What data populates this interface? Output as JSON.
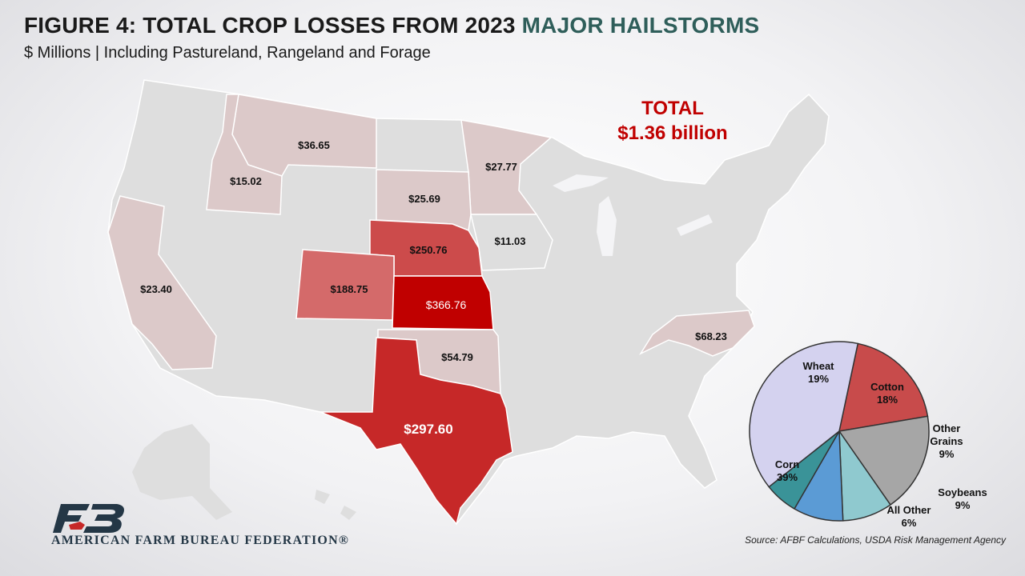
{
  "header": {
    "title_main": "FIGURE 4: TOTAL CROP LOSSES FROM 2023 ",
    "title_accent": "MAJOR HAILSTORMS",
    "subtitle": "$ Millions | Including Pastureland, Rangeland and Forage"
  },
  "total": {
    "line1": "TOTAL",
    "line2": "$1.36 billion"
  },
  "colors": {
    "state_default": "#dcdcdc",
    "state_low": "#dcc9c9",
    "state_mid": "#d46a6a",
    "state_high": "#cc4b4b",
    "state_texas": "#c62828",
    "state_max": "#c00000",
    "title_accent": "#2f5e5a",
    "total_text": "#c00000"
  },
  "chart_data": [
    {
      "type": "choropleth",
      "states": [
        {
          "state": "Montana",
          "value": 36.65,
          "label": "$36.65"
        },
        {
          "state": "Idaho",
          "value": 15.02,
          "label": "$15.02"
        },
        {
          "state": "Minnesota",
          "value": 27.77,
          "label": "$27.77"
        },
        {
          "state": "South Dakota",
          "value": 25.69,
          "label": "$25.69"
        },
        {
          "state": "Nebraska",
          "value": 250.76,
          "label": "$250.76"
        },
        {
          "state": "Iowa",
          "value": 11.03,
          "label": "$11.03"
        },
        {
          "state": "California",
          "value": 23.4,
          "label": "$23.40"
        },
        {
          "state": "Colorado",
          "value": 188.75,
          "label": "$188.75"
        },
        {
          "state": "Kansas",
          "value": 366.76,
          "label": "$366.76"
        },
        {
          "state": "Oklahoma",
          "value": 54.79,
          "label": "$54.79"
        },
        {
          "state": "Texas",
          "value": 297.6,
          "label": "$297.60"
        },
        {
          "state": "North Carolina",
          "value": 68.23,
          "label": "$68.23"
        }
      ]
    },
    {
      "type": "pie",
      "slices": [
        {
          "name": "Wheat",
          "label_lines": [
            "Wheat",
            "19%"
          ],
          "value": 19,
          "color": "#c84b4b"
        },
        {
          "name": "Cotton",
          "label_lines": [
            "Cotton",
            "18%"
          ],
          "value": 18,
          "color": "#a6a6a6"
        },
        {
          "name": "Other Grains",
          "label_lines": [
            "Other",
            "Grains",
            "9%"
          ],
          "value": 9,
          "color": "#8fc9cf"
        },
        {
          "name": "Soybeans",
          "label_lines": [
            "Soybeans",
            "9%"
          ],
          "value": 9,
          "color": "#5b9bd5"
        },
        {
          "name": "All Other",
          "label_lines": [
            "All Other",
            "6%"
          ],
          "value": 6,
          "color": "#3a9398"
        },
        {
          "name": "Corn",
          "label_lines": [
            "Corn",
            "39%"
          ],
          "value": 39,
          "color": "#d4d2ef"
        }
      ]
    }
  ],
  "source": "Source: AFBF Calculations, USDA Risk Management Agency",
  "logo": {
    "text": "AMERICAN FARM BUREAU FEDERATION®",
    "mark": "FB"
  }
}
